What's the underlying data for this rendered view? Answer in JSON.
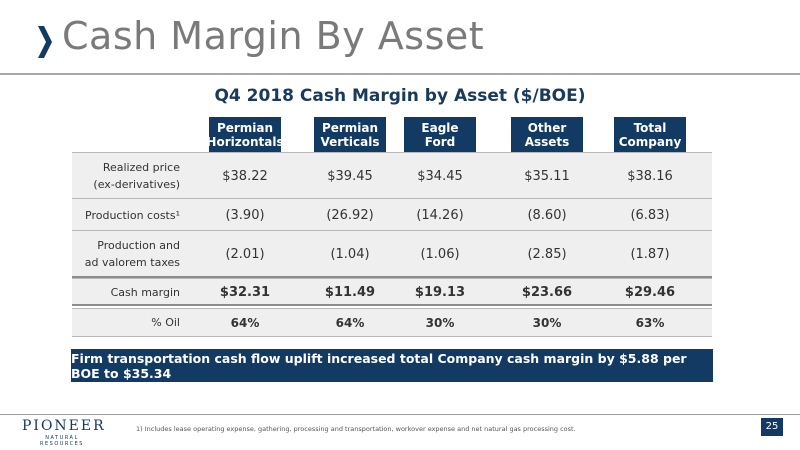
{
  "slide": {
    "title": "Cash Margin By Asset",
    "subtitle": "Q4 2018 Cash Margin by Asset ($/BOE)",
    "banner": "Firm transportation cash flow uplift increased total Company cash margin by $5.88 per BOE to $35.34",
    "footnote": "1) Includes lease operating expense, gathering, processing and transportation, workover expense and net natural gas processing cost.",
    "page_number": "25",
    "logo": {
      "name": "PIONEER",
      "tagline": "NATURAL RESOURCES"
    }
  },
  "table": {
    "columns": [
      {
        "line1": "Permian",
        "line2": "Horizontals"
      },
      {
        "line1": "Permian",
        "line2": "Verticals"
      },
      {
        "line1": "Eagle",
        "line2": "Ford"
      },
      {
        "line1": "Other",
        "line2": "Assets"
      },
      {
        "line1": "Total",
        "line2": "Company"
      }
    ],
    "rows": [
      {
        "label1": "Realized price",
        "label2": "(ex-derivatives)",
        "values": [
          "$38.22",
          "$39.45",
          "$34.45",
          "$35.11",
          "$38.16"
        ]
      },
      {
        "label1": "Production costs¹",
        "label2": "",
        "values": [
          "(3.90)",
          "(26.92)",
          "(14.26)",
          "(8.60)",
          "(6.83)"
        ]
      },
      {
        "label1": "Production and",
        "label2": "ad valorem taxes",
        "values": [
          "(2.01)",
          "(1.04)",
          "(1.06)",
          "(2.85)",
          "(1.87)"
        ]
      },
      {
        "label1": "Cash margin",
        "label2": "",
        "values": [
          "$32.31",
          "$11.49",
          "$19.13",
          "$23.66",
          "$29.46"
        ]
      },
      {
        "label1": "% Oil",
        "label2": "",
        "values": [
          "64%",
          "64%",
          "30%",
          "30%",
          "63%"
        ]
      }
    ]
  },
  "colors": {
    "navy": "#133a63",
    "title_gray": "#7a7a7a",
    "row_bg": "#efefef"
  }
}
